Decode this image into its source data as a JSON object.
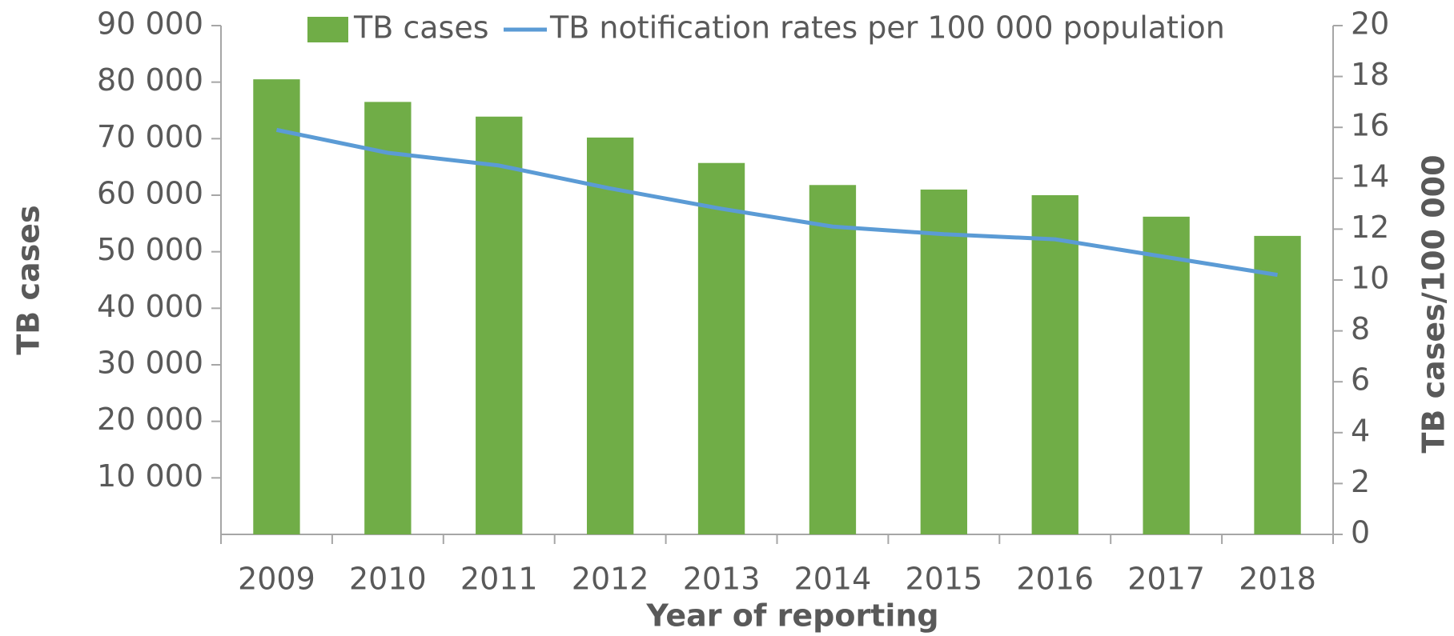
{
  "chart_data": {
    "type": "bar_line",
    "x_label": "Year of reporting",
    "y_label": "TB cases",
    "y2_label": "TB cases/100 000",
    "categories": [
      "2009",
      "2010",
      "2011",
      "2012",
      "2013",
      "2014",
      "2015",
      "2016",
      "2017",
      "2018"
    ],
    "series": [
      {
        "name": "TB cases",
        "type": "bar",
        "color": "#70ad47",
        "values": [
          80500,
          76500,
          73900,
          70200,
          65700,
          61800,
          61000,
          60000,
          56200,
          52800
        ]
      },
      {
        "name": "TB notification rates per 100 000 population",
        "type": "line",
        "axis": "y2",
        "color": "#5b9bd5",
        "values": [
          15.9,
          15.0,
          14.5,
          13.6,
          12.8,
          12.1,
          11.8,
          11.6,
          10.9,
          10.2
        ]
      }
    ],
    "ylim": [
      0,
      90000
    ],
    "yticks": [
      {
        "value": 10000,
        "label": "10 000"
      },
      {
        "value": 20000,
        "label": "20 000"
      },
      {
        "value": 30000,
        "label": "30 000"
      },
      {
        "value": 40000,
        "label": "40 000"
      },
      {
        "value": 50000,
        "label": "50 000"
      },
      {
        "value": 60000,
        "label": "60 000"
      },
      {
        "value": 70000,
        "label": "70 000"
      },
      {
        "value": 80000,
        "label": "80 000"
      },
      {
        "value": 90000,
        "label": "90 000"
      }
    ],
    "y2lim": [
      0,
      20
    ],
    "y2ticks": [
      0,
      2,
      4,
      6,
      8,
      10,
      12,
      14,
      16,
      18,
      20
    ],
    "legend": "top"
  }
}
